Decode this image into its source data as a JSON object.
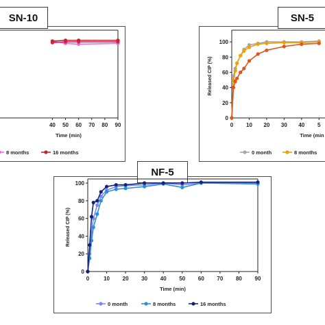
{
  "chart_data": [
    {
      "type": "line",
      "title": "SN-10",
      "xlabel": "Time (min)",
      "ylabel": "",
      "xlim": [
        0,
        90
      ],
      "ylim": [
        0,
        110
      ],
      "x_ticks": [
        "40",
        "50",
        "60",
        "70",
        "80",
        "90"
      ],
      "y_ticks": [],
      "series": [
        {
          "name": "",
          "color": "#f26bd0",
          "x": [
            40,
            50,
            60,
            90
          ],
          "y": [
            101,
            98,
            97,
            98
          ]
        },
        {
          "name": "8 months",
          "color": "#e0206a",
          "x": [
            40,
            50,
            60,
            90
          ],
          "y": [
            99,
            100,
            100,
            100
          ]
        },
        {
          "name": "16 months",
          "color": "#c0242c",
          "x": [
            40,
            50,
            60,
            90
          ],
          "y": [
            101,
            102,
            102,
            102
          ]
        }
      ],
      "legend_position": "bottom"
    },
    {
      "type": "line",
      "title": "SN-5",
      "xlabel": "Time (min",
      "ylabel": "Released CIP (%)",
      "xlim": [
        0,
        55
      ],
      "ylim": [
        0,
        110
      ],
      "x_ticks": [
        "0",
        "10",
        "20",
        "30",
        "40",
        "5"
      ],
      "y_ticks": [
        "0",
        "20",
        "40",
        "60",
        "80",
        "100"
      ],
      "series": [
        {
          "name": "0 month",
          "color": "#a6a6a6",
          "x": [
            0,
            1,
            2,
            3,
            5,
            7,
            10,
            15,
            20,
            30,
            40,
            50
          ],
          "y": [
            0,
            55,
            65,
            72,
            82,
            90,
            96,
            98,
            100,
            100,
            100,
            101
          ]
        },
        {
          "name": "8 months",
          "color": "#f0a000",
          "x": [
            0,
            1,
            2,
            3,
            5,
            7,
            10,
            15,
            20,
            30,
            40,
            50
          ],
          "y": [
            0,
            50,
            62,
            72,
            82,
            88,
            93,
            97,
            98,
            99,
            99,
            100
          ]
        },
        {
          "name": "",
          "color": "#e2531e",
          "x": [
            0,
            1,
            2,
            3,
            5,
            7,
            10,
            15,
            20,
            30,
            40,
            50
          ],
          "y": [
            0,
            40,
            48,
            52,
            60,
            65,
            75,
            84,
            89,
            94,
            97,
            98
          ]
        }
      ],
      "legend_position": "bottom"
    },
    {
      "type": "line",
      "title": "NF-5",
      "xlabel": "Time (min)",
      "ylabel": "Released CIP (%)",
      "xlim": [
        0,
        90
      ],
      "ylim": [
        0,
        100
      ],
      "x_ticks": [
        "0",
        "10",
        "20",
        "30",
        "40",
        "50",
        "60",
        "70",
        "80",
        "90"
      ],
      "y_ticks": [
        "0",
        "20",
        "40",
        "60",
        "80",
        "100"
      ],
      "series": [
        {
          "name": "0 month",
          "color": "#7b88f0",
          "x": [
            0,
            1,
            2,
            3,
            5,
            7,
            10,
            15,
            20,
            30,
            40,
            50,
            60,
            90
          ],
          "y": [
            0,
            20,
            45,
            60,
            75,
            85,
            92,
            96,
            97,
            98,
            100,
            98,
            100,
            100
          ]
        },
        {
          "name": "8 months",
          "color": "#2a8ee0",
          "x": [
            0,
            1,
            2,
            3,
            5,
            7,
            10,
            15,
            20,
            30,
            40,
            50,
            60,
            90
          ],
          "y": [
            0,
            15,
            35,
            50,
            65,
            80,
            90,
            93,
            94,
            96,
            99,
            95,
            100,
            99
          ]
        },
        {
          "name": "16 months",
          "color": "#14237a",
          "x": [
            0,
            1,
            2,
            3,
            5,
            7,
            10,
            15,
            20,
            30,
            40,
            50,
            60,
            90
          ],
          "y": [
            0,
            30,
            62,
            78,
            80,
            90,
            96,
            98,
            98,
            100,
            100,
            100,
            101,
            101
          ]
        }
      ],
      "legend_position": "bottom"
    }
  ]
}
